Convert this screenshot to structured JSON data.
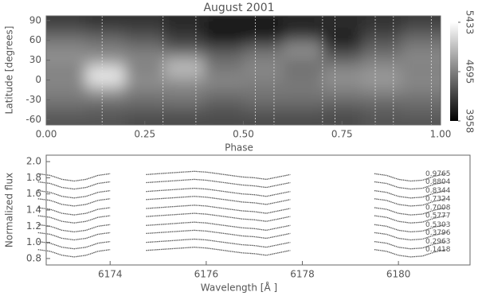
{
  "chart_data": [
    {
      "type": "heatmap",
      "title": "August 2001",
      "x_label": "Phase",
      "y_label": "Latitude [degrees]",
      "xlim": [
        0,
        1
      ],
      "xticks": [
        {
          "value": 0,
          "label": "0.00"
        },
        {
          "value": 0.25,
          "label": "0.25"
        },
        {
          "value": 0.5,
          "label": "0.50"
        },
        {
          "value": 0.75,
          "label": "0.75"
        },
        {
          "value": 1,
          "label": "1.00"
        }
      ],
      "ylim": [
        -68,
        97
      ],
      "yticks": [
        -60,
        -30,
        0,
        30,
        60,
        90
      ],
      "x": [
        0.05,
        0.15,
        0.25,
        0.35,
        0.45,
        0.55,
        0.65,
        0.75,
        0.85,
        0.95
      ],
      "y": [
        90,
        75,
        60,
        45,
        30,
        15,
        0,
        -15,
        -30,
        -45,
        -60
      ],
      "z": [
        [
          4300,
          4250,
          4250,
          4200,
          4150,
          4150,
          4200,
          4200,
          4250,
          4300
        ],
        [
          4450,
          4400,
          4350,
          4200,
          4050,
          4000,
          4100,
          4200,
          4300,
          4450
        ],
        [
          4650,
          4600,
          4500,
          4350,
          4150,
          4250,
          4550,
          4100,
          4450,
          4600
        ],
        [
          4750,
          4700,
          4650,
          4500,
          4450,
          4600,
          4800,
          4350,
          4550,
          4700
        ],
        [
          4800,
          4850,
          4750,
          4950,
          4600,
          4700,
          4650,
          4550,
          4700,
          4750
        ],
        [
          4700,
          5250,
          4700,
          5050,
          4650,
          4750,
          4600,
          4750,
          4800,
          4700
        ],
        [
          4750,
          5300,
          4800,
          4850,
          4750,
          4700,
          4650,
          4800,
          4850,
          4750
        ],
        [
          4700,
          4900,
          4700,
          4700,
          4650,
          4650,
          4650,
          4700,
          4750,
          4700
        ],
        [
          4650,
          4650,
          4600,
          4650,
          4550,
          4600,
          4600,
          4600,
          4600,
          4600
        ],
        [
          4550,
          4500,
          4500,
          4500,
          4450,
          4500,
          4500,
          4450,
          4500,
          4550
        ],
        [
          4450,
          4450,
          4400,
          4400,
          4400,
          4400,
          4400,
          4400,
          4450,
          4450
        ]
      ],
      "colorbar": {
        "lim": [
          3958,
          5433
        ],
        "ticks": [
          3958,
          4695,
          5433
        ]
      },
      "obs_phases": [
        0.1418,
        0.2963,
        0.3796,
        0.5303,
        0.5777,
        0.7008,
        0.7324,
        0.8344,
        0.8804,
        0.9765
      ]
    },
    {
      "type": "line",
      "x_label": "Wavelength [Å ]",
      "y_label": "Normalized flux",
      "xlim": [
        6172.67,
        6181.49
      ],
      "xticks": [
        6174,
        6176,
        6178,
        6180
      ],
      "ylim": [
        0.72,
        2.08
      ],
      "yticks": [
        0.8,
        {
          "value": 1,
          "label": "1.0"
        },
        1.2,
        1.4,
        1.6,
        1.8,
        {
          "value": 2,
          "label": "2.0"
        }
      ],
      "color": "#555555",
      "x": [
        6172.5,
        6172.75,
        6173,
        6173.25,
        6173.5,
        6173.75,
        6174,
        6174.25,
        6174.5,
        6174.75,
        6175,
        6175.25,
        6175.5,
        6175.75,
        6176,
        6176.25,
        6176.5,
        6176.75,
        6177,
        6177.25,
        6177.5,
        6177.75,
        6178,
        6178.25,
        6178.5,
        6178.75,
        6179,
        6179.25,
        6179.5,
        6179.75,
        6180,
        6180.25,
        6180.5,
        6180.75,
        6181
      ],
      "series": [
        {
          "name": "0.1418",
          "values": [
            0.91,
            0.89,
            0.84,
            0.82,
            0.84,
            0.89,
            0.91,
            null,
            null,
            0.9,
            0.91,
            0.92,
            0.93,
            0.94,
            0.93,
            0.91,
            0.89,
            0.87,
            0.86,
            0.84,
            0.87,
            0.9,
            null,
            null,
            null,
            null,
            null,
            null,
            0.91,
            0.89,
            0.84,
            0.82,
            0.83,
            0.88,
            0.91
          ]
        },
        {
          "name": "0.2963",
          "values": [
            1.01,
            0.99,
            0.94,
            0.92,
            0.94,
            0.99,
            1.01,
            null,
            null,
            1,
            1.01,
            1.02,
            1.03,
            1.04,
            1.03,
            1.01,
            0.99,
            0.97,
            0.96,
            0.94,
            0.97,
            1,
            null,
            null,
            null,
            null,
            null,
            null,
            1.01,
            0.99,
            0.94,
            0.92,
            0.93,
            0.98,
            1.01
          ]
        },
        {
          "name": "0.3796",
          "values": [
            1.12,
            1.1,
            1.05,
            1.03,
            1.05,
            1.1,
            1.12,
            null,
            null,
            1.11,
            1.12,
            1.13,
            1.14,
            1.15,
            1.14,
            1.12,
            1.1,
            1.08,
            1.07,
            1.05,
            1.08,
            1.11,
            null,
            null,
            null,
            null,
            null,
            null,
            1.12,
            1.1,
            1.05,
            1.03,
            1.04,
            1.09,
            1.12
          ]
        },
        {
          "name": "0.5303",
          "values": [
            1.22,
            1.2,
            1.15,
            1.13,
            1.15,
            1.2,
            1.22,
            null,
            null,
            1.21,
            1.22,
            1.23,
            1.24,
            1.25,
            1.24,
            1.22,
            1.2,
            1.18,
            1.17,
            1.15,
            1.18,
            1.21,
            null,
            null,
            null,
            null,
            null,
            null,
            1.22,
            1.2,
            1.15,
            1.13,
            1.14,
            1.19,
            1.22
          ]
        },
        {
          "name": "0.5777",
          "values": [
            1.33,
            1.31,
            1.26,
            1.24,
            1.26,
            1.31,
            1.33,
            null,
            null,
            1.32,
            1.33,
            1.34,
            1.35,
            1.36,
            1.35,
            1.33,
            1.31,
            1.29,
            1.28,
            1.26,
            1.29,
            1.32,
            null,
            null,
            null,
            null,
            null,
            null,
            1.33,
            1.31,
            1.26,
            1.24,
            1.25,
            1.3,
            1.33
          ]
        },
        {
          "name": "0.7008",
          "values": [
            1.43,
            1.41,
            1.36,
            1.34,
            1.36,
            1.41,
            1.43,
            null,
            null,
            1.42,
            1.43,
            1.44,
            1.45,
            1.46,
            1.45,
            1.43,
            1.41,
            1.39,
            1.38,
            1.36,
            1.39,
            1.42,
            null,
            null,
            null,
            null,
            null,
            null,
            1.43,
            1.41,
            1.36,
            1.34,
            1.35,
            1.4,
            1.43
          ]
        },
        {
          "name": "0.7324",
          "values": [
            1.54,
            1.52,
            1.47,
            1.45,
            1.47,
            1.52,
            1.54,
            null,
            null,
            1.53,
            1.54,
            1.55,
            1.56,
            1.57,
            1.56,
            1.54,
            1.52,
            1.5,
            1.49,
            1.47,
            1.5,
            1.53,
            null,
            null,
            null,
            null,
            null,
            null,
            1.54,
            1.52,
            1.47,
            1.45,
            1.46,
            1.51,
            1.54
          ]
        },
        {
          "name": "0.8344",
          "values": [
            1.64,
            1.62,
            1.57,
            1.55,
            1.57,
            1.62,
            1.64,
            null,
            null,
            1.63,
            1.64,
            1.65,
            1.66,
            1.67,
            1.66,
            1.64,
            1.62,
            1.6,
            1.59,
            1.57,
            1.6,
            1.63,
            null,
            null,
            null,
            null,
            null,
            null,
            1.64,
            1.62,
            1.57,
            1.55,
            1.56,
            1.61,
            1.64
          ]
        },
        {
          "name": "0.8804",
          "values": [
            1.75,
            1.73,
            1.68,
            1.66,
            1.68,
            1.73,
            1.75,
            null,
            null,
            1.74,
            1.75,
            1.76,
            1.77,
            1.78,
            1.77,
            1.75,
            1.73,
            1.71,
            1.7,
            1.68,
            1.71,
            1.74,
            null,
            null,
            null,
            null,
            null,
            null,
            1.75,
            1.73,
            1.68,
            1.66,
            1.67,
            1.72,
            1.75
          ]
        },
        {
          "name": "0.9765",
          "values": [
            1.85,
            1.83,
            1.78,
            1.76,
            1.78,
            1.83,
            1.85,
            null,
            null,
            1.84,
            1.85,
            1.86,
            1.87,
            1.88,
            1.87,
            1.85,
            1.83,
            1.81,
            1.8,
            1.78,
            1.81,
            1.84,
            null,
            null,
            null,
            null,
            null,
            null,
            1.85,
            1.83,
            1.78,
            1.76,
            1.77,
            1.82,
            1.85
          ]
        }
      ]
    }
  ]
}
